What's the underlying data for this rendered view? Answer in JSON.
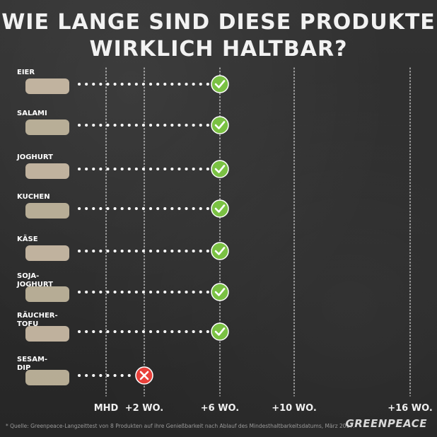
{
  "chart_data": {
    "type": "dot-timeline",
    "title_lines": [
      "WIE LANGE SIND DIESE PRODUKTE",
      "WIRKLICH HALTBAR?"
    ],
    "x_ticks": [
      {
        "label": "MHD",
        "weeks": 0
      },
      {
        "label": "+2 WO.",
        "weeks": 2
      },
      {
        "label": "+6 WO.",
        "weeks": 6
      },
      {
        "label": "+10 WO.",
        "weeks": 10
      },
      {
        "label": "+16 WO.",
        "weeks": 16
      }
    ],
    "items": [
      {
        "label": [
          "EIER"
        ],
        "weeks_beyond_mhd": 6,
        "result": "ok"
      },
      {
        "label": [
          "SALAMI"
        ],
        "weeks_beyond_mhd": 6,
        "result": "ok"
      },
      {
        "label": [
          "JOGHURT"
        ],
        "weeks_beyond_mhd": 6,
        "result": "ok"
      },
      {
        "label": [
          "KUCHEN"
        ],
        "weeks_beyond_mhd": 6,
        "result": "ok"
      },
      {
        "label": [
          "KÄSE"
        ],
        "weeks_beyond_mhd": 6,
        "result": "ok"
      },
      {
        "label": [
          "SOJA-",
          "JOGHURT"
        ],
        "weeks_beyond_mhd": 6,
        "result": "ok"
      },
      {
        "label": [
          "RÄUCHER-",
          "TOFU"
        ],
        "weeks_beyond_mhd": 6,
        "result": "ok"
      },
      {
        "label": [
          "SESAM-",
          "DIP"
        ],
        "weeks_beyond_mhd": 2,
        "result": "fail"
      }
    ],
    "colors": {
      "ok": "#7ac143",
      "fail": "#e8403a",
      "dots": "#ffffff",
      "gridlines": "#ffffff"
    }
  },
  "footnote": "* Quelle: Greenpeace-Langzeittest von 8 Produkten auf ihre Genießbarkeit nach Ablauf des Mindesthaltbarkeitsdatums, März 2017.",
  "brand": "GREENPEACE"
}
